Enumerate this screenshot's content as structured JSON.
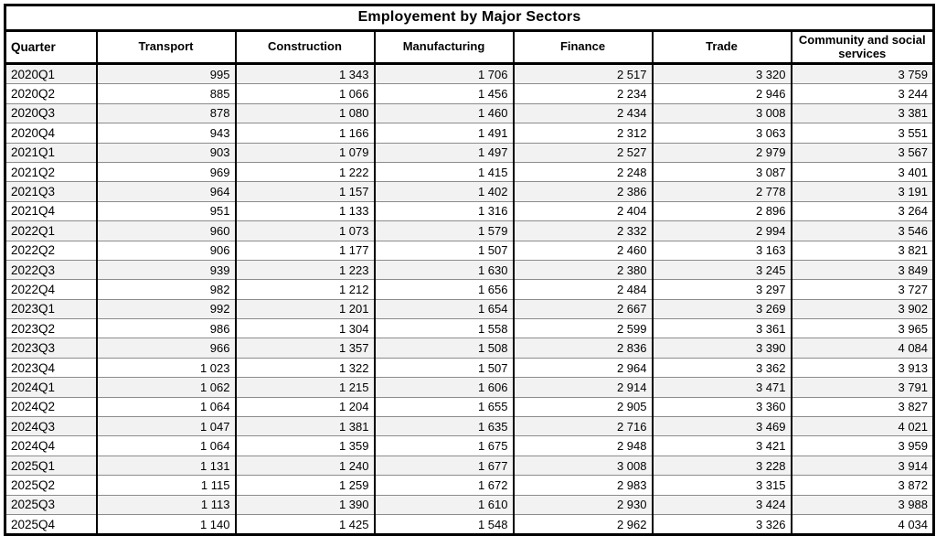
{
  "title": "Employement by Major Sectors",
  "colors": {
    "stripe": "#f2f2f2",
    "grid_line": "#8c8c8c",
    "border": "#000000",
    "background": "#ffffff",
    "text": "#000000"
  },
  "chart_data": {
    "type": "table",
    "title": "Employement by Major Sectors",
    "columns": [
      "Quarter",
      "Transport",
      "Construction",
      "Manufacturing",
      "Finance",
      "Trade",
      "Community and social services"
    ],
    "number_format": "space thousands separator, right-aligned",
    "layout": {
      "striped_rows": true,
      "stripe_on_odd_data_rows": true,
      "first_column_align": "left",
      "value_align": "right",
      "header_align": "center"
    },
    "rows": [
      [
        "2020Q1",
        995,
        1343,
        1706,
        2517,
        3320,
        3759
      ],
      [
        "2020Q2",
        885,
        1066,
        1456,
        2234,
        2946,
        3244
      ],
      [
        "2020Q3",
        878,
        1080,
        1460,
        2434,
        3008,
        3381
      ],
      [
        "2020Q4",
        943,
        1166,
        1491,
        2312,
        3063,
        3551
      ],
      [
        "2021Q1",
        903,
        1079,
        1497,
        2527,
        2979,
        3567
      ],
      [
        "2021Q2",
        969,
        1222,
        1415,
        2248,
        3087,
        3401
      ],
      [
        "2021Q3",
        964,
        1157,
        1402,
        2386,
        2778,
        3191
      ],
      [
        "2021Q4",
        951,
        1133,
        1316,
        2404,
        2896,
        3264
      ],
      [
        "2022Q1",
        960,
        1073,
        1579,
        2332,
        2994,
        3546
      ],
      [
        "2022Q2",
        906,
        1177,
        1507,
        2460,
        3163,
        3821
      ],
      [
        "2022Q3",
        939,
        1223,
        1630,
        2380,
        3245,
        3849
      ],
      [
        "2022Q4",
        982,
        1212,
        1656,
        2484,
        3297,
        3727
      ],
      [
        "2023Q1",
        992,
        1201,
        1654,
        2667,
        3269,
        3902
      ],
      [
        "2023Q2",
        986,
        1304,
        1558,
        2599,
        3361,
        3965
      ],
      [
        "2023Q3",
        966,
        1357,
        1508,
        2836,
        3390,
        4084
      ],
      [
        "2023Q4",
        1023,
        1322,
        1507,
        2964,
        3362,
        3913
      ],
      [
        "2024Q1",
        1062,
        1215,
        1606,
        2914,
        3471,
        3791
      ],
      [
        "2024Q2",
        1064,
        1204,
        1655,
        2905,
        3360,
        3827
      ],
      [
        "2024Q3",
        1047,
        1381,
        1635,
        2716,
        3469,
        4021
      ],
      [
        "2024Q4",
        1064,
        1359,
        1675,
        2948,
        3421,
        3959
      ],
      [
        "2025Q1",
        1131,
        1240,
        1677,
        3008,
        3228,
        3914
      ],
      [
        "2025Q2",
        1115,
        1259,
        1672,
        2983,
        3315,
        3872
      ],
      [
        "2025Q3",
        1113,
        1390,
        1610,
        2930,
        3424,
        3988
      ],
      [
        "2025Q4",
        1140,
        1425,
        1548,
        2962,
        3326,
        4034
      ]
    ]
  }
}
